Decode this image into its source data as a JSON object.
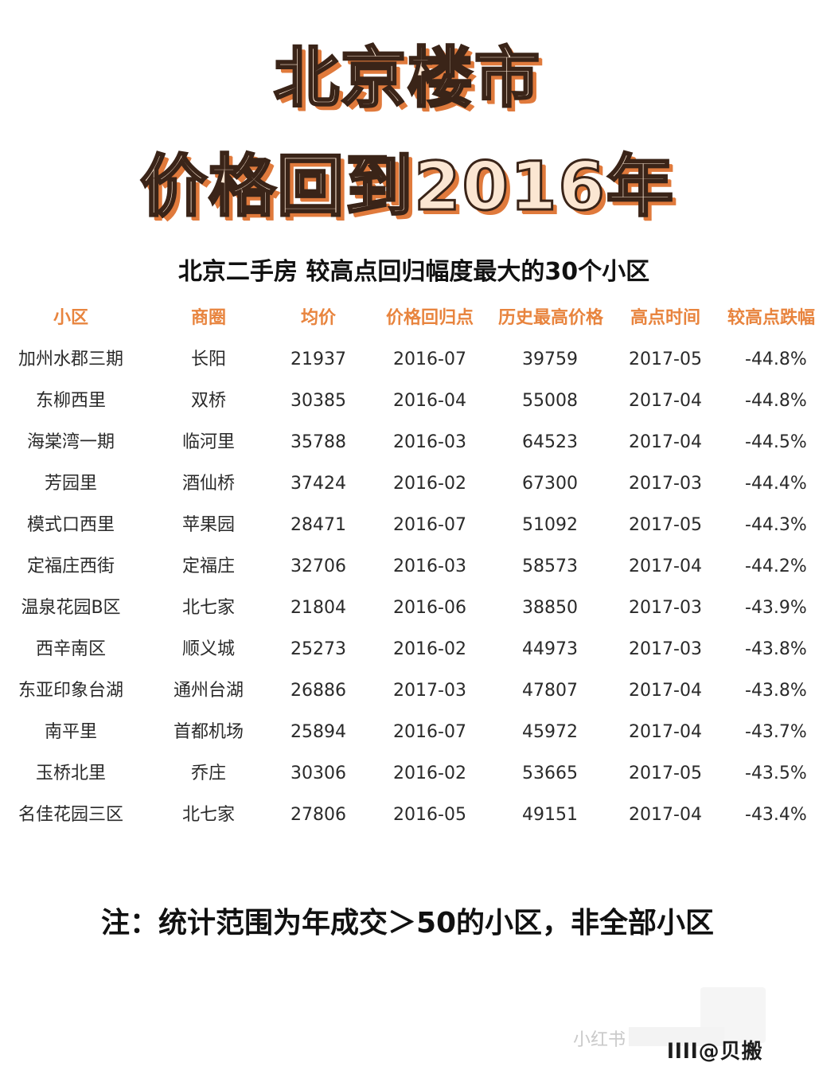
{
  "headline": {
    "line1": "北京楼市",
    "line2": "价格回到2016年"
  },
  "subtitle": "北京二手房 较高点回归幅度最大的30个小区",
  "table": {
    "columns": [
      "小区",
      "商圈",
      "均价",
      "价格回归点",
      "历史最高价格",
      "高点时间",
      "较高点跌幅"
    ],
    "rows": [
      [
        "加州水郡三期",
        "长阳",
        "21937",
        "2016-07",
        "39759",
        "2017-05",
        "-44.8%"
      ],
      [
        "东柳西里",
        "双桥",
        "30385",
        "2016-04",
        "55008",
        "2017-04",
        "-44.8%"
      ],
      [
        "海棠湾一期",
        "临河里",
        "35788",
        "2016-03",
        "64523",
        "2017-04",
        "-44.5%"
      ],
      [
        "芳园里",
        "酒仙桥",
        "37424",
        "2016-02",
        "67300",
        "2017-03",
        "-44.4%"
      ],
      [
        "模式口西里",
        "苹果园",
        "28471",
        "2016-07",
        "51092",
        "2017-05",
        "-44.3%"
      ],
      [
        "定福庄西街",
        "定福庄",
        "32706",
        "2016-03",
        "58573",
        "2017-04",
        "-44.2%"
      ],
      [
        "温泉花园B区",
        "北七家",
        "21804",
        "2016-06",
        "38850",
        "2017-03",
        "-43.9%"
      ],
      [
        "西辛南区",
        "顺义城",
        "25273",
        "2016-02",
        "44973",
        "2017-03",
        "-43.8%"
      ],
      [
        "东亚印象台湖",
        "通州台湖",
        "26886",
        "2017-03",
        "47807",
        "2017-04",
        "-43.8%"
      ],
      [
        "南平里",
        "首都机场",
        "25894",
        "2016-07",
        "45972",
        "2017-04",
        "-43.7%"
      ],
      [
        "玉桥北里",
        "乔庄",
        "30306",
        "2016-02",
        "53665",
        "2017-05",
        "-43.5%"
      ],
      [
        "名佳花园三区",
        "北七家",
        "27806",
        "2016-05",
        "49151",
        "2017-04",
        "-43.4%"
      ]
    ]
  },
  "note": "注：统计范围为年成交＞50的小区，非全部小区",
  "watermark": {
    "faint": "小红书",
    "strong": "llll@贝搬"
  },
  "colors": {
    "header_text": "#e8843e",
    "headline_fill": "#fbe6d2",
    "headline_stroke": "#3a2418",
    "headline_shadow": "#e07a3c"
  }
}
